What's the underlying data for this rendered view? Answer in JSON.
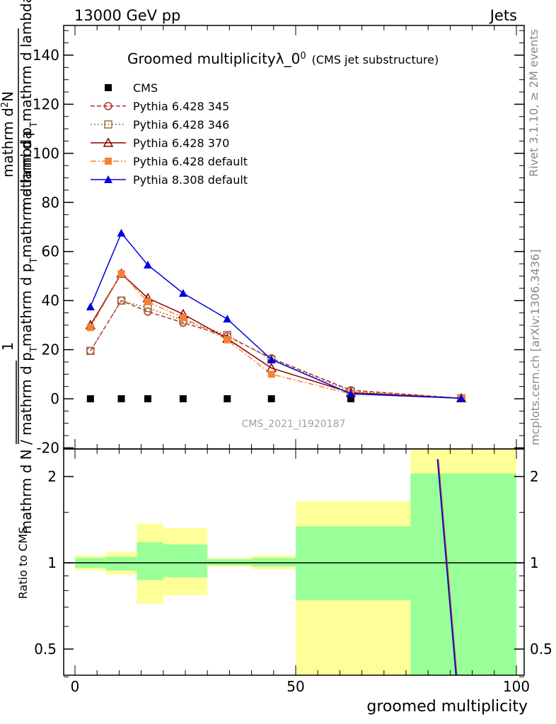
{
  "header": {
    "left": "13000 GeV pp",
    "right": "Jets"
  },
  "side_labels": {
    "rivet": "Rivet 3.1.10, ≥ 2M events",
    "mcplots": "mcplots.cern.ch [arXiv:1306.3436]"
  },
  "title": {
    "main": "Groomed multiplicityλ_0",
    "sup": "0",
    "sub": "(CMS jet substructure)"
  },
  "watermark": "CMS_2021_I1920187",
  "colors": {
    "cms": "#000000",
    "p345": "#b03030",
    "p346": "#a07040",
    "p370": "#8b0000",
    "pdef": "#f58232",
    "p8": "#0000dd",
    "band_inner": "#99ff99",
    "band_outer": "#ffff99"
  },
  "chart_data": [
    {
      "type": "line",
      "xlabel": "groomed multiplicity",
      "ylabel_numerator": "mathrm d²N",
      "ylabel_numerator_parts": [
        "mathrm d",
        "2",
        "N"
      ],
      "ylabel_prefix": "1",
      "ylabel_top": "mathrm d p_T mathrm d lambda",
      "ylabel_bottom": "mathrm d N / mathrm d p_T mathrm d p_T mathrm d lambda",
      "ylabel_top_parts": [
        "mathrm d p",
        "T",
        "mathrm d lambda"
      ],
      "ylabel_bottom_parts": [
        "mathrm d N / mathrm d p",
        "T",
        "mathrm d p",
        "T",
        "mathrm d lambda"
      ],
      "xlim": [
        -2,
        100
      ],
      "ylim": [
        -20,
        153
      ],
      "yticks": [
        -20,
        0,
        20,
        40,
        60,
        80,
        100,
        120,
        140
      ],
      "x": [
        3.5,
        10.5,
        16.5,
        24.5,
        34.5,
        44.5,
        62.5,
        87.5
      ],
      "series": [
        {
          "name": "CMS",
          "marker": "square-filled",
          "values": [
            0,
            0,
            0,
            0,
            0,
            0,
            0,
            0
          ]
        },
        {
          "name": "Pythia 6.428 345",
          "marker": "circle-open",
          "line": "dashed",
          "values": [
            19.5,
            40.0,
            35.5,
            31.0,
            25.5,
            16.5,
            3.5,
            0.2
          ]
        },
        {
          "name": "Pythia 6.428 346",
          "marker": "square-open",
          "line": "dotted",
          "values": [
            19.5,
            40.0,
            37.0,
            32.0,
            26.0,
            16.0,
            3.0,
            0.2
          ]
        },
        {
          "name": "Pythia 6.428 370",
          "marker": "triangle-open",
          "line": "solid",
          "values": [
            30.0,
            51.0,
            41.0,
            34.5,
            24.5,
            12.5,
            2.5,
            0.2
          ]
        },
        {
          "name": "Pythia 6.428 default",
          "marker": "square-filled",
          "line": "dashdot",
          "values": [
            29.0,
            51.0,
            39.5,
            33.0,
            24.0,
            10.0,
            2.0,
            0.2
          ]
        },
        {
          "name": "Pythia 8.308 default",
          "marker": "triangle-filled",
          "line": "solid",
          "values": [
            37.5,
            67.5,
            54.5,
            43.0,
            32.5,
            16.0,
            2.0,
            0.2
          ]
        }
      ]
    },
    {
      "type": "line",
      "ylabel": "Ratio to CMS",
      "ylim": [
        0.36,
        2.25
      ],
      "yscale": "log",
      "yticks": [
        0.5,
        1,
        2
      ],
      "xticks": [
        0,
        50,
        100
      ],
      "bins": [
        {
          "lo": 0,
          "hi": 7,
          "inner": [
            0.96,
            1.04
          ],
          "outer": [
            0.94,
            1.06
          ]
        },
        {
          "lo": 7,
          "hi": 14,
          "inner": [
            0.94,
            1.05
          ],
          "outer": [
            0.91,
            1.09
          ]
        },
        {
          "lo": 14,
          "hi": 20,
          "inner": [
            0.87,
            1.18
          ],
          "outer": [
            0.72,
            1.37
          ]
        },
        {
          "lo": 20,
          "hi": 30,
          "inner": [
            0.89,
            1.16
          ],
          "outer": [
            0.77,
            1.32
          ]
        },
        {
          "lo": 30,
          "hi": 40,
          "inner": [
            0.98,
            1.03
          ],
          "outer": [
            0.97,
            1.04
          ]
        },
        {
          "lo": 40,
          "hi": 50,
          "inner": [
            0.97,
            1.04
          ],
          "outer": [
            0.95,
            1.06
          ]
        },
        {
          "lo": 50,
          "hi": 76,
          "inner": [
            0.74,
            1.34
          ],
          "outer": [
            0.2,
            1.64
          ]
        },
        {
          "lo": 76,
          "hi": 100,
          "inner": [
            0.1,
            2.05
          ],
          "outer": [
            0.1,
            3.0
          ]
        }
      ],
      "reference": 1,
      "series": [
        {
          "name": "Pythia 6.428 345",
          "points": [
            [
              82.3,
              2.3
            ],
            [
              86.5,
              0.36
            ]
          ]
        },
        {
          "name": "Pythia 8.308 default",
          "points": [
            [
              82.1,
              2.3
            ],
            [
              86.3,
              0.36
            ]
          ]
        }
      ]
    }
  ]
}
